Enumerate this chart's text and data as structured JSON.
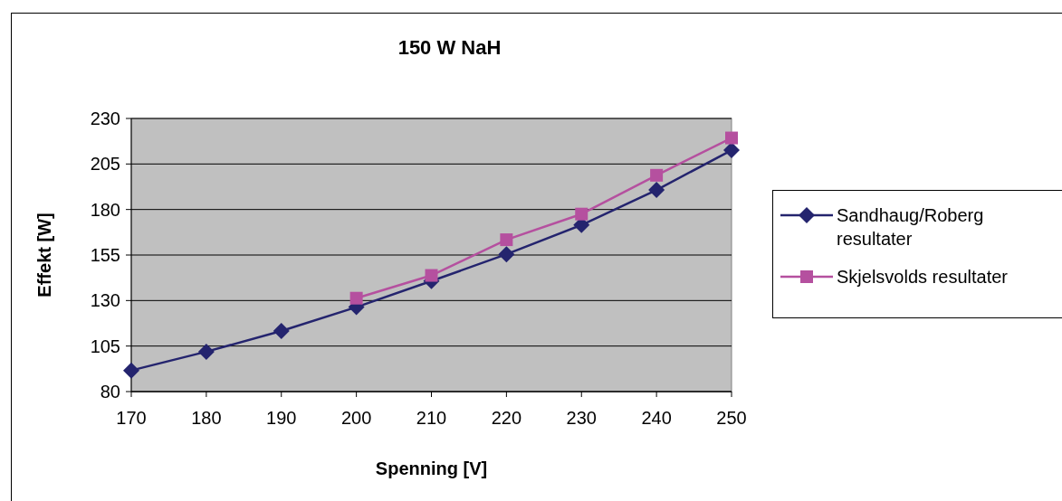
{
  "chart_data": {
    "type": "line",
    "title": "150 W NaH",
    "xlabel": "Spenning [V]",
    "ylabel": "Effekt [W]",
    "x": [
      170,
      180,
      190,
      200,
      210,
      220,
      230,
      240,
      250
    ],
    "series": [
      {
        "name": "Sandhaug/Roberg resultater",
        "color": "#24246e",
        "marker": "diamond",
        "values": [
          91.6,
          101.9,
          113.3,
          126.4,
          140.7,
          155.4,
          171.5,
          190.7,
          212.6
        ]
      },
      {
        "name": "Skjelsvolds resultater",
        "color": "#b5509f",
        "marker": "square",
        "values": [
          null,
          null,
          null,
          131.3,
          143.8,
          163.4,
          177.5,
          198.8,
          219.3
        ]
      }
    ],
    "xlim": [
      170,
      250
    ],
    "xticks": [
      170,
      180,
      190,
      200,
      210,
      220,
      230,
      240,
      250
    ],
    "ylim": [
      80,
      230
    ],
    "yticks": [
      80,
      105,
      130,
      155,
      180,
      205,
      230
    ],
    "grid": "y",
    "legend": "right"
  }
}
